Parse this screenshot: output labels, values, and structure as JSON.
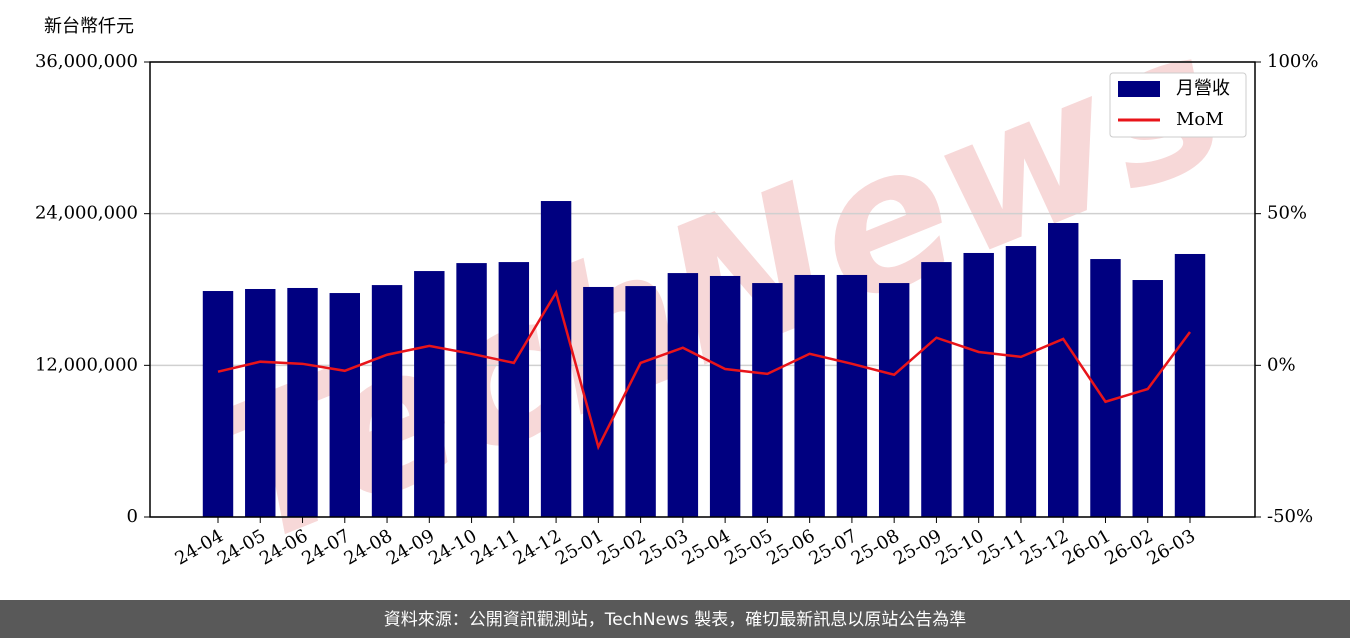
{
  "chart_data": {
    "type": "bar_line",
    "y_label": "新台幣仟元",
    "watermark": "TechNews",
    "footer": "資料來源：公開資訊觀測站，TechNews 製表，確切最新訊息以原站公告為準",
    "categories": [
      "24-04",
      "24-05",
      "24-06",
      "24-07",
      "24-08",
      "24-09",
      "24-10",
      "24-11",
      "24-12",
      "25-01",
      "25-02",
      "25-03",
      "25-04",
      "25-05",
      "25-06",
      "25-07",
      "25-08",
      "25-09",
      "25-10",
      "25-11",
      "25-12",
      "26-01",
      "26-02",
      "26-03"
    ],
    "series": [
      {
        "name": "月營收",
        "color": "#000080",
        "type": "bar",
        "values": [
          17880000,
          18040000,
          18120000,
          17720000,
          18350000,
          19460000,
          20090000,
          20170000,
          25000000,
          18200000,
          18270000,
          19300000,
          19070000,
          18510000,
          19150000,
          19150000,
          18510000,
          20170000,
          20890000,
          21440000,
          23260000,
          20410000,
          18750000,
          20810000
        ]
      },
      {
        "name": "MoM",
        "color": "#e8141a",
        "type": "line",
        "axis": "y2",
        "values": [
          -2.1,
          1.2,
          0.5,
          -1.8,
          3.5,
          6.4,
          3.8,
          0.8,
          24.0,
          -26.9,
          0.8,
          5.8,
          -1.2,
          -2.8,
          3.8,
          0.5,
          -3.1,
          9.1,
          4.4,
          2.8,
          8.7,
          -12.0,
          -7.8,
          11.0
        ]
      }
    ],
    "ylim": [
      0,
      36000000
    ],
    "yticks": [
      {
        "value": 0,
        "label": "0"
      },
      {
        "value": 12000000,
        "label": "12,000,000"
      },
      {
        "value": 24000000,
        "label": "24,000,000"
      },
      {
        "value": 36000000,
        "label": "36,000,000"
      }
    ],
    "y2lim": [
      -50,
      100
    ],
    "y2ticks": [
      {
        "value": -50,
        "label": "-50%"
      },
      {
        "value": 0,
        "label": "0%"
      },
      {
        "value": 50,
        "label": "50%"
      },
      {
        "value": 100,
        "label": "100%"
      }
    ],
    "grid": true,
    "legend": "upper right"
  }
}
